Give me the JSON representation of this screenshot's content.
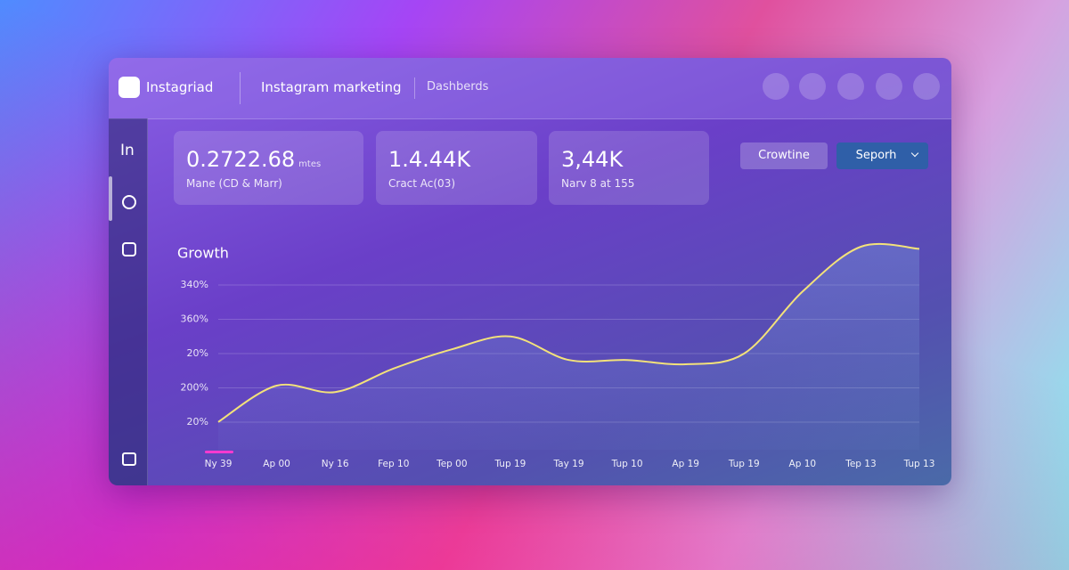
{
  "header": {
    "brand": "Instagriad",
    "section": "Instagram marketing",
    "page": "Dashberds"
  },
  "sidebar": {
    "top_label": "In"
  },
  "stats": [
    {
      "value": "0.2722.68",
      "unit": "mtes",
      "label": "Mane (CD & Marr)"
    },
    {
      "value": "1.4.44K",
      "label": "Cract Ac(03)"
    },
    {
      "value": "3,44K",
      "label": "Narv 8 at 155"
    }
  ],
  "buttons": {
    "secondary": "Crowtine",
    "primary": "Seporh"
  },
  "y_labels": [
    "340%",
    "360%",
    "20%",
    "200%",
    "20%"
  ],
  "chart_data": {
    "type": "line",
    "title": "Growth",
    "categories": [
      "Ny 39",
      "Ap 00",
      "Ny 16",
      "Fep 10",
      "Tep 00",
      "Tup 19",
      "Tay 19",
      "Tup 10",
      "Ap 19",
      "Tup 19",
      "Ap 10",
      "Tep 13",
      "Tup 13"
    ],
    "series": [
      {
        "name": "Growth",
        "color": "#f3e27a",
        "values": [
          13,
          30,
          27,
          38,
          47,
          53,
          42,
          42,
          40,
          45,
          74,
          95,
          94
        ]
      }
    ],
    "ylim": [
      0,
      100
    ]
  }
}
